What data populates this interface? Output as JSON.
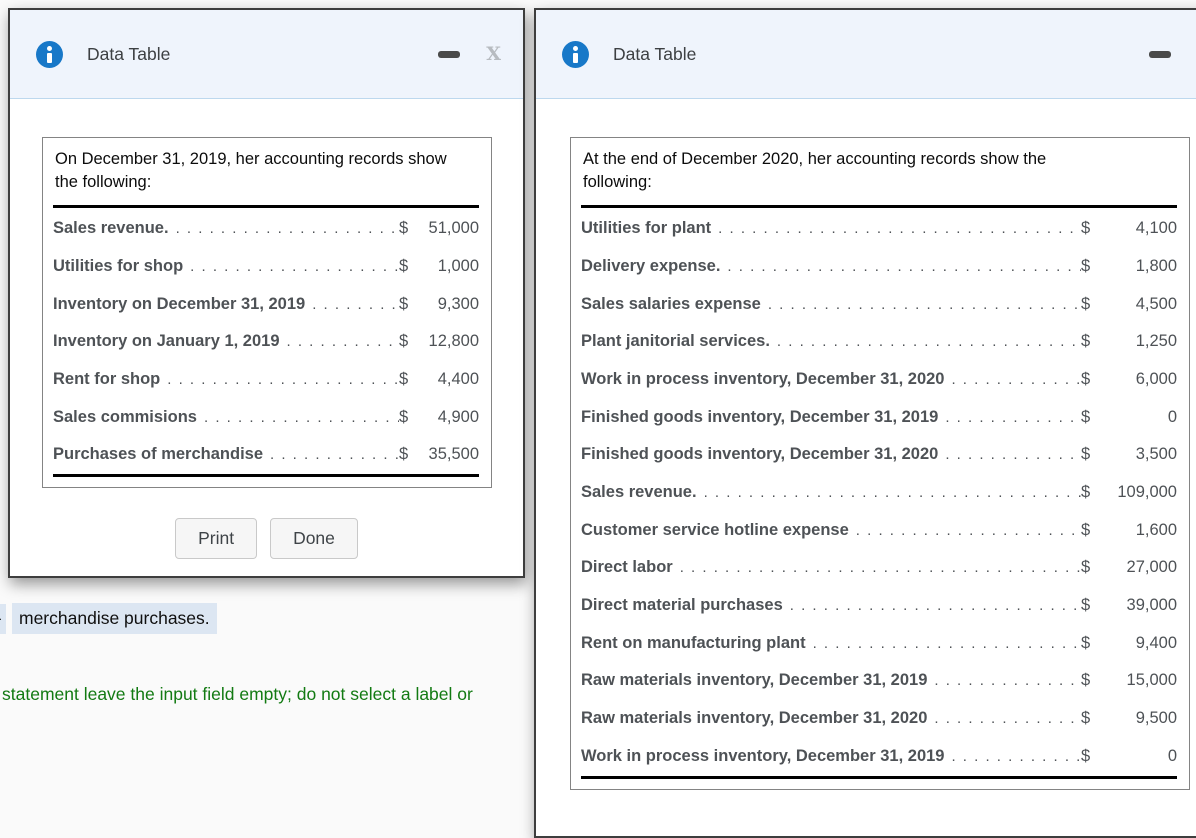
{
  "page": {
    "fragment": "-",
    "highlighted_text": "merchandise purchases.",
    "instruction_text": "statement leave the input field empty; do not select a label or",
    "colors": {
      "accent_blue": "#1878c8",
      "highlight_bg": "#dce6f2",
      "instruction_green": "#127a12",
      "header_bg": "#eff4fc"
    }
  },
  "left_dialog": {
    "title": "Data Table",
    "close_label": "X",
    "intro": "On December 31, 2019, her accounting records show the following:",
    "rows": [
      {
        "label": "Sales revenue.",
        "currency": "$",
        "value": "51,000"
      },
      {
        "label": "Utilities for shop",
        "currency": "$",
        "value": "1,000"
      },
      {
        "label": "Inventory on December 31, 2019",
        "currency": "$",
        "value": "9,300"
      },
      {
        "label": "Inventory on January 1, 2019",
        "currency": "$",
        "value": "12,800"
      },
      {
        "label": "Rent for shop",
        "currency": "$",
        "value": "4,400"
      },
      {
        "label": "Sales commisions",
        "currency": "$",
        "value": "4,900"
      },
      {
        "label": "Purchases of merchandise",
        "currency": "$",
        "value": "35,500"
      }
    ],
    "print_label": "Print",
    "done_label": "Done"
  },
  "right_dialog": {
    "title": "Data Table",
    "close_label": "X",
    "intro": "At the end of December 2020, her accounting records show the following:",
    "rows": [
      {
        "label": "Utilities for plant",
        "currency": "$",
        "value": "4,100"
      },
      {
        "label": "Delivery expense.",
        "currency": "$",
        "value": "1,800"
      },
      {
        "label": "Sales salaries expense",
        "currency": "$",
        "value": "4,500"
      },
      {
        "label": "Plant janitorial services.",
        "currency": "$",
        "value": "1,250"
      },
      {
        "label": "Work in process inventory, December 31, 2020",
        "currency": "$",
        "value": "6,000"
      },
      {
        "label": "Finished goods inventory, December 31, 2019",
        "currency": "$",
        "value": "0"
      },
      {
        "label": "Finished goods inventory, December 31, 2020",
        "currency": "$",
        "value": "3,500"
      },
      {
        "label": "Sales revenue.",
        "currency": "$",
        "value": "109,000"
      },
      {
        "label": "Customer service hotline expense",
        "currency": "$",
        "value": "1,600"
      },
      {
        "label": "Direct labor",
        "currency": "$",
        "value": "27,000"
      },
      {
        "label": "Direct material purchases",
        "currency": "$",
        "value": "39,000"
      },
      {
        "label": "Rent on manufacturing plant",
        "currency": "$",
        "value": "9,400"
      },
      {
        "label": "Raw materials inventory, December 31, 2019",
        "currency": "$",
        "value": "15,000"
      },
      {
        "label": "Raw materials inventory, December 31, 2020",
        "currency": "$",
        "value": "9,500"
      },
      {
        "label": "Work in process inventory, December 31, 2019",
        "currency": "$",
        "value": "0"
      }
    ]
  }
}
